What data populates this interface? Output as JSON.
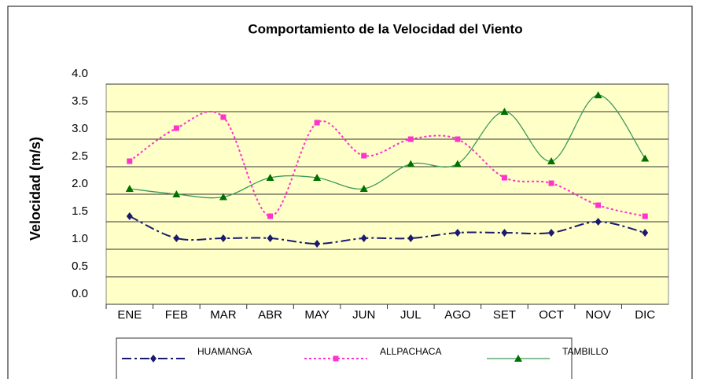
{
  "chart_data": {
    "type": "line",
    "title": "Comportamiento de la Velocidad del Viento",
    "y_label": "Velocidad  (m/s)",
    "categories": [
      "ENE",
      "FEB",
      "MAR",
      "ABR",
      "MAY",
      "JUN",
      "JUL",
      "AGO",
      "SET",
      "OCT",
      "NOV",
      "DIC"
    ],
    "series": [
      {
        "name": "HUAMANGA",
        "color": "#1a1a6e",
        "marker": "diamond",
        "dash": "12 4 3 4",
        "values": [
          1.6,
          1.2,
          1.2,
          1.2,
          1.1,
          1.2,
          1.2,
          1.3,
          1.3,
          1.3,
          1.5,
          1.3
        ]
      },
      {
        "name": "ALLPACHACA",
        "color": "#ff33cc",
        "marker": "square",
        "dash": "3 3",
        "values": [
          2.6,
          3.2,
          3.4,
          1.6,
          3.3,
          2.7,
          3.0,
          3.0,
          2.3,
          2.2,
          1.8,
          1.6
        ]
      },
      {
        "name": "TAMBILLO",
        "color": "#3c9a5a",
        "marker_color": "#007000",
        "marker": "triangle",
        "dash": "none",
        "values": [
          2.1,
          2.0,
          1.95,
          2.3,
          2.3,
          2.1,
          2.55,
          2.55,
          3.5,
          2.6,
          3.8,
          2.65
        ]
      }
    ],
    "ylim": [
      0,
      4
    ],
    "yticks": [
      {
        "value": 0,
        "label": "0.0"
      },
      {
        "value": 0.5,
        "label": "0.5"
      },
      {
        "value": 1,
        "label": "1.0"
      },
      {
        "value": 1.5,
        "label": "1.5"
      },
      {
        "value": 2,
        "label": "2.0"
      },
      {
        "value": 2.5,
        "label": "2.5"
      },
      {
        "value": 3,
        "label": "3.0"
      },
      {
        "value": 3.5,
        "label": "3.5"
      },
      {
        "value": 4,
        "label": "4.0"
      }
    ],
    "grid": true,
    "legend": "bottom"
  }
}
